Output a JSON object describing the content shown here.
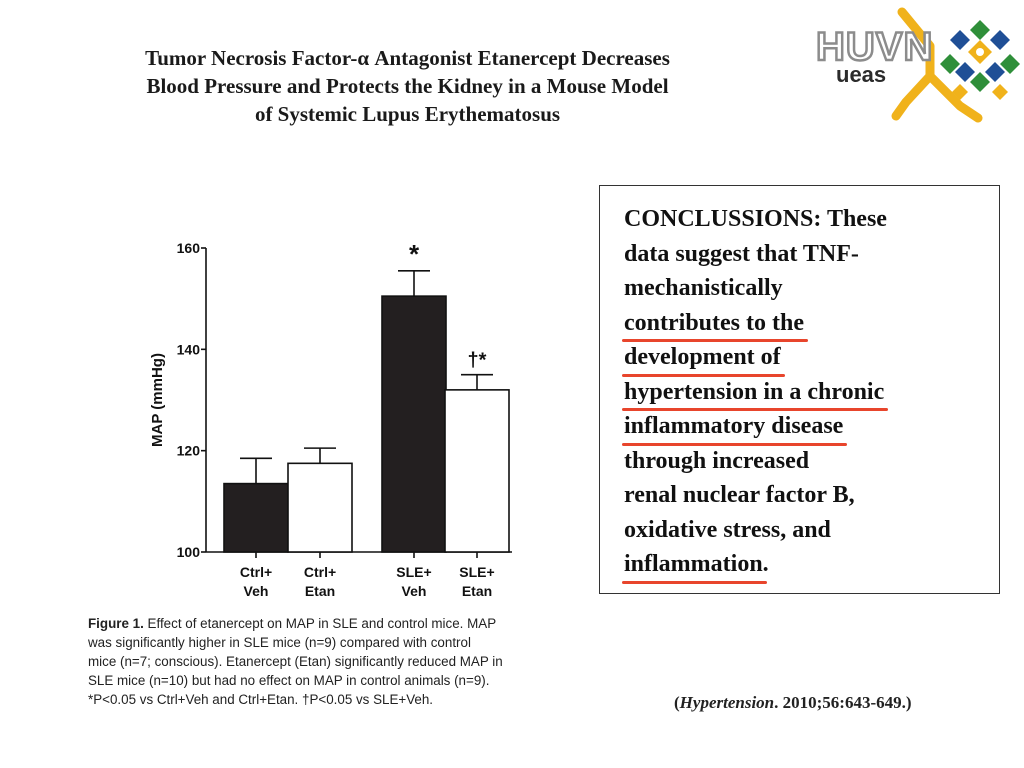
{
  "slide": {
    "title_lines": [
      "Tumor Necrosis Factor-α Antagonist Etanercept Decreases",
      "Blood Pressure and Protects the Kidney in a Mouse Model",
      "of Systemic Lupus Erythematosus"
    ],
    "logo": {
      "text_top": "HUVN",
      "text_bottom": "ueas",
      "colors": {
        "yellow": "#f0b21b",
        "green": "#2f8f3a",
        "blue": "#1f4f96",
        "gray": "#9a9a9a"
      }
    },
    "caption": {
      "label": "Figure 1.",
      "lines": [
        "Effect of etanercept on MAP in SLE and control mice. MAP",
        "was significantly higher in SLE mice (n=9) compared with control",
        "mice (n=7; conscious). Etanercept (Etan) significantly reduced MAP in",
        "SLE mice (n=10) but had no effect on MAP in control animals (n=9).",
        "*P<0.05 vs Ctrl+Veh and Ctrl+Etan. †P<0.05 vs SLE+Veh."
      ]
    },
    "conclusion": {
      "lines": [
        {
          "text": "CONCLUSSIONS: These",
          "underline": false
        },
        {
          "text": "data suggest that TNF-",
          "underline": false
        },
        {
          "text": "mechanistically",
          "underline": false
        },
        {
          "text": "contributes to the",
          "underline": true
        },
        {
          "text": "development of",
          "underline": true
        },
        {
          "text": "hypertension in a chronic",
          "underline": true
        },
        {
          "text": "inflammatory disease",
          "underline": true
        },
        {
          "text": "through increased",
          "underline": false
        },
        {
          "text": "renal nuclear factor B,",
          "underline": false
        },
        {
          "text": "oxidative stress, and",
          "underline": false
        },
        {
          "text": "inflammation",
          "underline": true,
          "suffix": "."
        }
      ],
      "underline_color": "#e8452c"
    },
    "citation": {
      "open": "(",
      "journal": "Hypertension",
      "rest": ". 2010;56:643-649.)"
    }
  },
  "chart_data": {
    "type": "bar",
    "title": "",
    "xlabel": "",
    "ylabel": "MAP (mmHg)",
    "ylim": [
      100,
      160
    ],
    "yticks": [
      100,
      120,
      140,
      160
    ],
    "categories": [
      {
        "line1": "Ctrl+",
        "line2": "Veh"
      },
      {
        "line1": "Ctrl+",
        "line2": "Etan"
      },
      {
        "line1": "SLE+",
        "line2": "Veh"
      },
      {
        "line1": "SLE+",
        "line2": "Etan"
      }
    ],
    "values": [
      113.5,
      117.5,
      150.5,
      132
    ],
    "errors": [
      5,
      3,
      5,
      3
    ],
    "fills": [
      "#231f20",
      "#ffffff",
      "#231f20",
      "#ffffff"
    ],
    "annotations": [
      "",
      "",
      "*",
      "†*"
    ],
    "grid": false,
    "legend": "none"
  }
}
